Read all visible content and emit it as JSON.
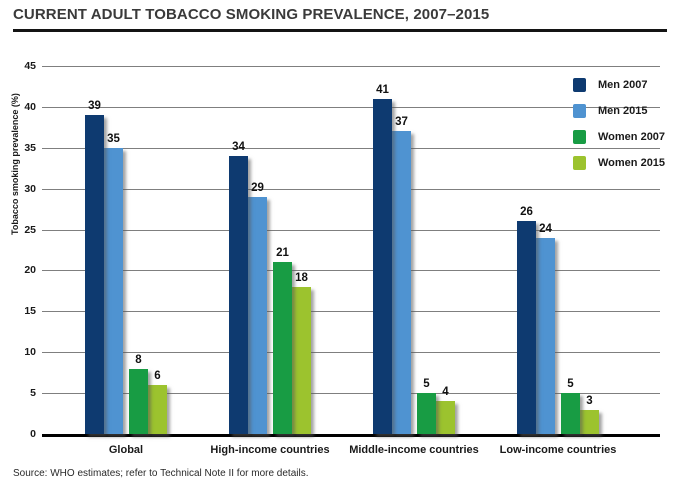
{
  "title": "CURRENT ADULT TOBACCO SMOKING PREVALENCE, 2007–2015",
  "source": "Source: WHO estimates; refer to Technical Note II for more details.",
  "colors": {
    "men_2007": "#0e3a70",
    "men_2015": "#4f93d1",
    "women_2007": "#189c44",
    "women_2015": "#9cc32e",
    "gridline": "#7f7f7f",
    "baseline": "#000000"
  },
  "chart_data": {
    "type": "bar",
    "title": "CURRENT ADULT TOBACCO SMOKING PREVALENCE, 2007–2015",
    "xlabel": "",
    "ylabel": "Tobacco smoking prevalence (%)",
    "ylim": [
      0,
      45
    ],
    "ytick_step": 5,
    "grid": true,
    "legend_position": "top-right",
    "categories": [
      "Global",
      "High-income countries",
      "Middle-income countries",
      "Low-income countries"
    ],
    "series": [
      {
        "name": "Men 2007",
        "color": "#0e3a70",
        "values": [
          39,
          34,
          41,
          26
        ]
      },
      {
        "name": "Men 2015",
        "color": "#4f93d1",
        "values": [
          35,
          29,
          37,
          24
        ]
      },
      {
        "name": "Women 2007",
        "color": "#189c44",
        "values": [
          8,
          21,
          5,
          5
        ]
      },
      {
        "name": "Women 2015",
        "color": "#9cc32e",
        "values": [
          6,
          18,
          4,
          3
        ]
      }
    ]
  }
}
